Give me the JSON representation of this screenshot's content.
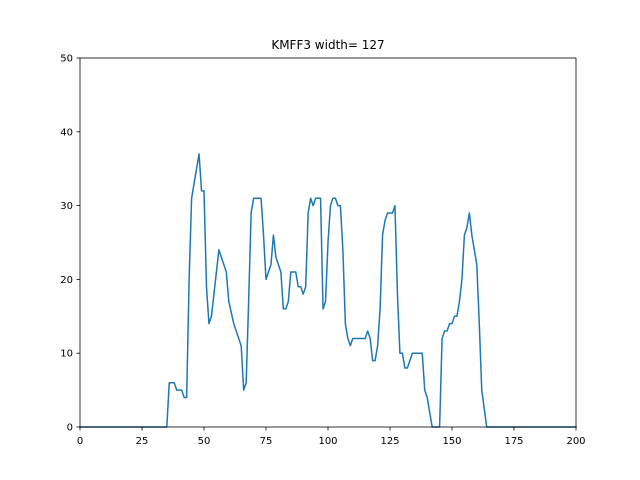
{
  "chart_data": {
    "type": "line",
    "title": "KMFF3 width= 127",
    "xlabel": "",
    "ylabel": "",
    "xlim": [
      0,
      200
    ],
    "ylim": [
      0,
      50
    ],
    "x_ticks": [
      0,
      25,
      50,
      75,
      100,
      125,
      150,
      175,
      200
    ],
    "y_ticks": [
      0,
      10,
      20,
      30,
      40,
      50
    ],
    "grid": false,
    "series": [
      {
        "color": "#1f77b4",
        "x": [
          0,
          35,
          36,
          38,
          39,
          41,
          42,
          43,
          44,
          45,
          46,
          48,
          49,
          50,
          51,
          52,
          53,
          54,
          56,
          58,
          59,
          60,
          62,
          63,
          64,
          65,
          66,
          67,
          68,
          69,
          70,
          72,
          73,
          74,
          75,
          76,
          77,
          78,
          79,
          80,
          81,
          82,
          83,
          84,
          85,
          86,
          87,
          88,
          89,
          90,
          91,
          92,
          93,
          94,
          95,
          96,
          97,
          98,
          99,
          100,
          101,
          102,
          103,
          104,
          105,
          106,
          107,
          108,
          109,
          110,
          112,
          114,
          115,
          116,
          117,
          118,
          119,
          120,
          121,
          122,
          123,
          124,
          125,
          126,
          127,
          128,
          129,
          130,
          131,
          132,
          133,
          134,
          135,
          136,
          137,
          138,
          139,
          140,
          142,
          143,
          144,
          145,
          146,
          147,
          148,
          149,
          150,
          151,
          152,
          153,
          154,
          155,
          156,
          157,
          158,
          159,
          160,
          161,
          162,
          164,
          200
        ],
        "y": [
          0,
          0,
          6,
          6,
          5,
          5,
          4,
          4,
          20,
          31,
          33,
          37,
          32,
          32,
          19,
          14,
          15,
          18,
          24,
          22,
          21,
          17,
          14,
          13,
          12,
          11,
          5,
          6,
          17,
          29,
          31,
          31,
          31,
          26,
          20,
          21,
          22,
          26,
          23,
          22,
          21,
          16,
          16,
          17,
          21,
          21,
          21,
          19,
          19,
          18,
          19,
          29,
          31,
          30,
          31,
          31,
          31,
          16,
          17,
          25,
          30,
          31,
          31,
          30,
          30,
          24,
          14,
          12,
          11,
          12,
          12,
          12,
          12,
          13,
          12,
          9,
          9,
          11,
          16,
          26,
          28,
          29,
          29,
          29,
          30,
          18,
          10,
          10,
          8,
          8,
          9,
          10,
          10,
          10,
          10,
          10,
          5,
          4,
          0,
          0,
          0,
          0,
          12,
          13,
          13,
          14,
          14,
          15,
          15,
          17,
          20,
          26,
          27,
          29,
          26,
          24,
          22,
          14,
          5,
          0,
          0
        ]
      }
    ]
  }
}
